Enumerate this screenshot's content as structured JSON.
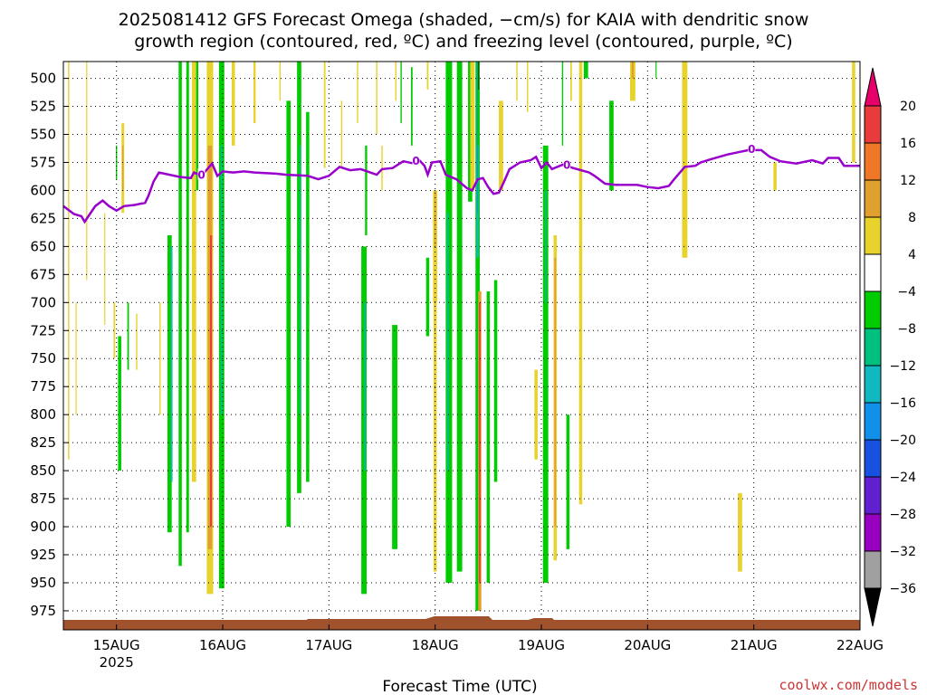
{
  "title_line1": "2025081412 GFS Forecast Omega (shaded, −cm/s) for KAIA with dendritic snow",
  "title_line2": "growth region (contoured, red, ºC) and freezing level (contoured, purple, ºC)",
  "credit": "coolwx.com/models",
  "chart_data": {
    "type": "heatmap",
    "xlabel": "Forecast Time (UTC)",
    "x_range_days": [
      14.5,
      22.0
    ],
    "x_ticks": [
      {
        "day": 15,
        "label": "15AUG",
        "sub": "2025"
      },
      {
        "day": 16,
        "label": "16AUG",
        "sub": ""
      },
      {
        "day": 17,
        "label": "17AUG",
        "sub": ""
      },
      {
        "day": 18,
        "label": "18AUG",
        "sub": ""
      },
      {
        "day": 19,
        "label": "19AUG",
        "sub": ""
      },
      {
        "day": 20,
        "label": "20AUG",
        "sub": ""
      },
      {
        "day": 21,
        "label": "21AUG",
        "sub": ""
      },
      {
        "day": 22,
        "label": "22AUG",
        "sub": ""
      }
    ],
    "y_range_hpa": [
      485,
      992
    ],
    "y_ticks": [
      500,
      525,
      550,
      575,
      600,
      625,
      650,
      675,
      700,
      725,
      750,
      775,
      800,
      825,
      850,
      875,
      900,
      925,
      950,
      975
    ],
    "grid": true,
    "colorbar": {
      "labels": [
        "20",
        "16",
        "12",
        "8",
        "4",
        "−4",
        "−8",
        "−12",
        "−16",
        "−20",
        "−24",
        "−28",
        "−32",
        "−36"
      ],
      "colors": [
        "#e8006a",
        "#e83c3c",
        "#ee7828",
        "#e0a030",
        "#e8d22c",
        "#ffffff",
        "#00cc00",
        "#00c080",
        "#10b8c0",
        "#1090e8",
        "#1850e0",
        "#6020d0",
        "#9800c0",
        "#a0a0a0",
        "#000000"
      ]
    },
    "freezing_level": {
      "color": "#9900cc",
      "label": "0",
      "label_days": [
        15.8,
        17.82,
        19.24,
        20.98
      ],
      "points": [
        [
          14.5,
          614
        ],
        [
          14.6,
          621
        ],
        [
          14.67,
          623
        ],
        [
          14.7,
          628
        ],
        [
          14.75,
          621
        ],
        [
          14.8,
          614
        ],
        [
          14.87,
          609
        ],
        [
          14.93,
          614
        ],
        [
          15.0,
          618
        ],
        [
          15.07,
          614
        ],
        [
          15.17,
          613
        ],
        [
          15.27,
          611
        ],
        [
          15.3,
          605
        ],
        [
          15.35,
          592
        ],
        [
          15.4,
          584
        ],
        [
          15.5,
          586
        ],
        [
          15.6,
          588
        ],
        [
          15.7,
          589
        ],
        [
          15.73,
          584
        ],
        [
          15.8,
          587
        ],
        [
          15.9,
          576
        ],
        [
          15.95,
          587
        ],
        [
          16.0,
          583
        ],
        [
          16.1,
          584
        ],
        [
          16.2,
          583
        ],
        [
          16.3,
          584
        ],
        [
          16.5,
          585
        ],
        [
          16.6,
          586
        ],
        [
          16.8,
          587
        ],
        [
          16.9,
          590
        ],
        [
          17.0,
          587
        ],
        [
          17.1,
          579
        ],
        [
          17.2,
          582
        ],
        [
          17.3,
          581
        ],
        [
          17.45,
          586
        ],
        [
          17.5,
          581
        ],
        [
          17.6,
          580
        ],
        [
          17.7,
          574
        ],
        [
          17.8,
          576
        ],
        [
          17.85,
          573
        ],
        [
          17.9,
          578
        ],
        [
          17.93,
          586
        ],
        [
          17.97,
          575
        ],
        [
          18.05,
          574
        ],
        [
          18.1,
          586
        ],
        [
          18.2,
          590
        ],
        [
          18.3,
          598
        ],
        [
          18.35,
          600
        ],
        [
          18.4,
          590
        ],
        [
          18.45,
          589
        ],
        [
          18.5,
          597
        ],
        [
          18.55,
          603
        ],
        [
          18.6,
          602
        ],
        [
          18.65,
          592
        ],
        [
          18.7,
          581
        ],
        [
          18.8,
          575
        ],
        [
          18.9,
          573
        ],
        [
          18.95,
          570
        ],
        [
          19.0,
          580
        ],
        [
          19.05,
          575
        ],
        [
          19.1,
          581
        ],
        [
          19.2,
          577
        ],
        [
          19.3,
          580
        ],
        [
          19.45,
          584
        ],
        [
          19.5,
          587
        ],
        [
          19.6,
          594
        ],
        [
          19.7,
          595
        ],
        [
          19.9,
          595
        ],
        [
          20.0,
          597
        ],
        [
          20.1,
          598
        ],
        [
          20.2,
          596
        ],
        [
          20.25,
          590
        ],
        [
          20.35,
          579
        ],
        [
          20.45,
          578
        ],
        [
          20.5,
          575
        ],
        [
          20.6,
          572
        ],
        [
          20.75,
          568
        ],
        [
          20.85,
          566
        ],
        [
          20.95,
          564
        ],
        [
          21.07,
          564
        ],
        [
          21.15,
          570
        ],
        [
          21.25,
          574
        ],
        [
          21.4,
          576
        ],
        [
          21.55,
          573
        ],
        [
          21.65,
          576
        ],
        [
          21.7,
          571
        ],
        [
          21.8,
          571
        ],
        [
          21.85,
          578
        ],
        [
          22.0,
          578
        ]
      ]
    },
    "shaded_regions": [
      {
        "color": "#e8d22c",
        "day": 14.55,
        "top": 485,
        "bottom": 840,
        "width": 0.012
      },
      {
        "color": "#e8d22c",
        "day": 14.62,
        "top": 700,
        "bottom": 800,
        "width": 0.01
      },
      {
        "color": "#e8d22c",
        "day": 14.72,
        "top": 485,
        "bottom": 680,
        "width": 0.01
      },
      {
        "color": "#e8d22c",
        "day": 14.89,
        "top": 620,
        "bottom": 720,
        "width": 0.01
      },
      {
        "color": "#e8d22c",
        "day": 14.98,
        "top": 700,
        "bottom": 750,
        "width": 0.015
      },
      {
        "color": "#00cc00",
        "day": 15.0,
        "top": 560,
        "bottom": 590,
        "width": 0.012
      },
      {
        "color": "#e8d22c",
        "day": 15.06,
        "top": 540,
        "bottom": 620,
        "width": 0.025
      },
      {
        "color": "#e0a030",
        "day": 15.06,
        "top": 560,
        "bottom": 600,
        "width": 0.012
      },
      {
        "color": "#00cc00",
        "day": 15.03,
        "top": 730,
        "bottom": 850,
        "width": 0.03
      },
      {
        "color": "#00cc00",
        "day": 15.11,
        "top": 700,
        "bottom": 760,
        "width": 0.015
      },
      {
        "color": "#e8d22c",
        "day": 15.19,
        "top": 710,
        "bottom": 760,
        "width": 0.012
      },
      {
        "color": "#e8d22c",
        "day": 15.41,
        "top": 700,
        "bottom": 800,
        "width": 0.012
      },
      {
        "color": "#00cc00",
        "day": 15.5,
        "top": 640,
        "bottom": 905,
        "width": 0.04
      },
      {
        "color": "#10b8c0",
        "day": 15.52,
        "top": 650,
        "bottom": 860,
        "width": 0.015
      },
      {
        "color": "#00cc00",
        "day": 15.6,
        "top": 485,
        "bottom": 935,
        "width": 0.03
      },
      {
        "color": "#00cc00",
        "day": 15.67,
        "top": 485,
        "bottom": 905,
        "width": 0.025
      },
      {
        "color": "#e8d22c",
        "day": 15.73,
        "top": 485,
        "bottom": 860,
        "width": 0.04
      },
      {
        "color": "#00cc00",
        "day": 15.76,
        "top": 485,
        "bottom": 600,
        "width": 0.02
      },
      {
        "color": "#e8d22c",
        "day": 15.88,
        "top": 485,
        "bottom": 960,
        "width": 0.06
      },
      {
        "color": "#e0a030",
        "day": 15.88,
        "top": 560,
        "bottom": 920,
        "width": 0.04
      },
      {
        "color": "#e83c3c",
        "day": 15.89,
        "top": 640,
        "bottom": 900,
        "width": 0.018
      },
      {
        "color": "#00cc00",
        "day": 15.99,
        "top": 485,
        "bottom": 955,
        "width": 0.05
      },
      {
        "color": "#00c080",
        "day": 15.99,
        "top": 560,
        "bottom": 800,
        "width": 0.02
      },
      {
        "color": "#e8d22c",
        "day": 16.1,
        "top": 485,
        "bottom": 560,
        "width": 0.03
      },
      {
        "color": "#e8d22c",
        "day": 16.3,
        "top": 485,
        "bottom": 540,
        "width": 0.02
      },
      {
        "color": "#e8d22c",
        "day": 16.54,
        "top": 485,
        "bottom": 520,
        "width": 0.012
      },
      {
        "color": "#00cc00",
        "day": 16.62,
        "top": 520,
        "bottom": 900,
        "width": 0.04
      },
      {
        "color": "#00cc00",
        "day": 16.72,
        "top": 485,
        "bottom": 870,
        "width": 0.04
      },
      {
        "color": "#00c080",
        "day": 16.73,
        "top": 560,
        "bottom": 800,
        "width": 0.015
      },
      {
        "color": "#00cc00",
        "day": 16.8,
        "top": 530,
        "bottom": 860,
        "width": 0.03
      },
      {
        "color": "#e8d22c",
        "day": 16.96,
        "top": 485,
        "bottom": 580,
        "width": 0.015
      },
      {
        "color": "#e8d22c",
        "day": 17.12,
        "top": 520,
        "bottom": 580,
        "width": 0.012
      },
      {
        "color": "#e8d22c",
        "day": 17.27,
        "top": 485,
        "bottom": 540,
        "width": 0.012
      },
      {
        "color": "#00cc00",
        "day": 17.33,
        "top": 650,
        "bottom": 960,
        "width": 0.05
      },
      {
        "color": "#00c080",
        "day": 17.34,
        "top": 700,
        "bottom": 850,
        "width": 0.02
      },
      {
        "color": "#00cc00",
        "day": 17.35,
        "top": 560,
        "bottom": 640,
        "width": 0.02
      },
      {
        "color": "#e8d22c",
        "day": 17.45,
        "top": 485,
        "bottom": 550,
        "width": 0.012
      },
      {
        "color": "#e8d22c",
        "day": 17.5,
        "top": 560,
        "bottom": 600,
        "width": 0.012
      },
      {
        "color": "#e8d22c",
        "day": 17.63,
        "top": 485,
        "bottom": 520,
        "width": 0.012
      },
      {
        "color": "#00cc00",
        "day": 17.62,
        "top": 720,
        "bottom": 920,
        "width": 0.05
      },
      {
        "color": "#00cc00",
        "day": 17.68,
        "top": 485,
        "bottom": 540,
        "width": 0.012
      },
      {
        "color": "#00cc00",
        "day": 17.78,
        "top": 490,
        "bottom": 560,
        "width": 0.015
      },
      {
        "color": "#e8d22c",
        "day": 17.93,
        "top": 485,
        "bottom": 510,
        "width": 0.015
      },
      {
        "color": "#e8d22c",
        "day": 18.0,
        "top": 600,
        "bottom": 700,
        "width": 0.04
      },
      {
        "color": "#e0a030",
        "day": 18.0,
        "top": 600,
        "bottom": 650,
        "width": 0.012
      },
      {
        "color": "#e8d22c",
        "day": 18.0,
        "top": 650,
        "bottom": 940,
        "width": 0.03
      },
      {
        "color": "#00cc00",
        "day": 17.93,
        "top": 660,
        "bottom": 730,
        "width": 0.03
      },
      {
        "color": "#00cc00",
        "day": 18.13,
        "top": 485,
        "bottom": 950,
        "width": 0.06
      },
      {
        "color": "#00c080",
        "day": 18.12,
        "top": 620,
        "bottom": 850,
        "width": 0.02
      },
      {
        "color": "#00cc00",
        "day": 18.23,
        "top": 485,
        "bottom": 940,
        "width": 0.05
      },
      {
        "color": "#00cc00",
        "day": 18.33,
        "top": 485,
        "bottom": 610,
        "width": 0.04
      },
      {
        "color": "#e8d22c",
        "day": 18.35,
        "top": 485,
        "bottom": 600,
        "width": 0.04
      },
      {
        "color": "#00cc00",
        "day": 18.4,
        "top": 485,
        "bottom": 975,
        "width": 0.04
      },
      {
        "color": "#10b8c0",
        "day": 18.4,
        "top": 560,
        "bottom": 660,
        "width": 0.02
      },
      {
        "color": "#e0a030",
        "day": 18.42,
        "top": 690,
        "bottom": 975,
        "width": 0.03
      },
      {
        "color": "#e83c3c",
        "day": 18.42,
        "top": 700,
        "bottom": 950,
        "width": 0.015
      },
      {
        "color": "#1090e8",
        "day": 18.4,
        "top": 485,
        "bottom": 620,
        "width": 0.008
      },
      {
        "color": "#000000",
        "day": 18.41,
        "top": 485,
        "bottom": 510,
        "width": 0.006
      },
      {
        "color": "#00cc00",
        "day": 18.5,
        "top": 690,
        "bottom": 950,
        "width": 0.03
      },
      {
        "color": "#00cc00",
        "day": 18.57,
        "top": 680,
        "bottom": 860,
        "width": 0.03
      },
      {
        "color": "#e8d22c",
        "day": 18.62,
        "top": 520,
        "bottom": 600,
        "width": 0.04
      },
      {
        "color": "#e8d22c",
        "day": 18.77,
        "top": 485,
        "bottom": 520,
        "width": 0.012
      },
      {
        "color": "#e8d22c",
        "day": 18.87,
        "top": 485,
        "bottom": 530,
        "width": 0.012
      },
      {
        "color": "#e8d22c",
        "day": 18.95,
        "top": 760,
        "bottom": 840,
        "width": 0.03
      },
      {
        "color": "#00cc00",
        "day": 19.04,
        "top": 560,
        "bottom": 950,
        "width": 0.05
      },
      {
        "color": "#00c080",
        "day": 19.04,
        "top": 600,
        "bottom": 700,
        "width": 0.015
      },
      {
        "color": "#e8d22c",
        "day": 19.13,
        "top": 640,
        "bottom": 930,
        "width": 0.03
      },
      {
        "color": "#e0a030",
        "day": 19.13,
        "top": 660,
        "bottom": 900,
        "width": 0.015
      },
      {
        "color": "#00cc00",
        "day": 19.25,
        "top": 800,
        "bottom": 920,
        "width": 0.03
      },
      {
        "color": "#00cc00",
        "day": 19.2,
        "top": 485,
        "bottom": 560,
        "width": 0.012
      },
      {
        "color": "#e8d22c",
        "day": 19.28,
        "top": 485,
        "bottom": 520,
        "width": 0.015
      },
      {
        "color": "#e8d22c",
        "day": 19.37,
        "top": 485,
        "bottom": 880,
        "width": 0.03
      },
      {
        "color": "#00cc00",
        "day": 19.42,
        "top": 485,
        "bottom": 500,
        "width": 0.04
      },
      {
        "color": "#00cc00",
        "day": 19.66,
        "top": 520,
        "bottom": 600,
        "width": 0.04
      },
      {
        "color": "#e8d22c",
        "day": 19.86,
        "top": 485,
        "bottom": 520,
        "width": 0.05
      },
      {
        "color": "#e0a030",
        "day": 19.86,
        "top": 485,
        "bottom": 500,
        "width": 0.02
      },
      {
        "color": "#e8d22c",
        "day": 20.35,
        "top": 485,
        "bottom": 660,
        "width": 0.05
      },
      {
        "color": "#e8d22c",
        "day": 21.2,
        "top": 575,
        "bottom": 600,
        "width": 0.03
      },
      {
        "color": "#e8d22c",
        "day": 20.87,
        "top": 870,
        "bottom": 940,
        "width": 0.04
      },
      {
        "color": "#e8d22c",
        "day": 21.94,
        "top": 485,
        "bottom": 575,
        "width": 0.03
      },
      {
        "color": "#00cc00",
        "day": 20.08,
        "top": 485,
        "bottom": 500,
        "width": 0.01
      }
    ]
  }
}
